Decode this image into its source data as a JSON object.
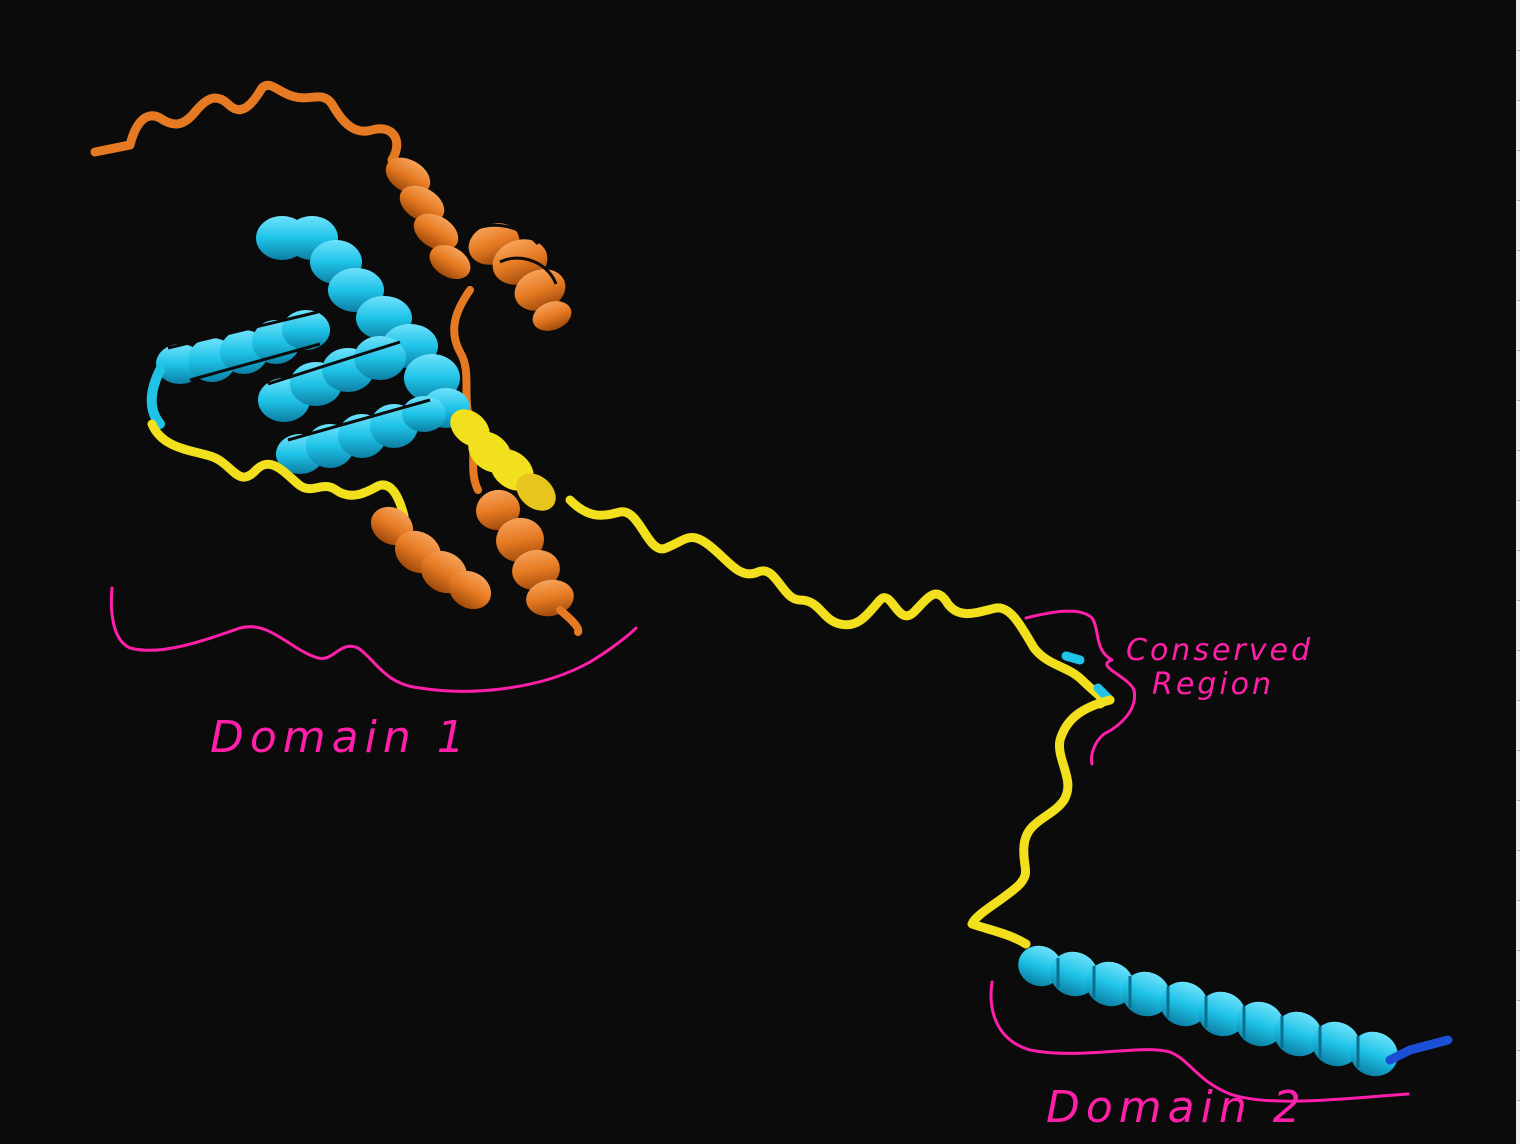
{
  "annotations": {
    "domain1": "Domain 1",
    "domain2": "Domain 2",
    "conserved_line1": "Conserved",
    "conserved_line2": "Region"
  },
  "colors": {
    "background": "#0b0b0b",
    "helix_cyan": "#1fc3e8",
    "helix_orange": "#e67a22",
    "coil_yellow": "#f2e01e",
    "terminus_blue": "#1a4fd6",
    "annotation_pink": "#ff1fa8"
  }
}
